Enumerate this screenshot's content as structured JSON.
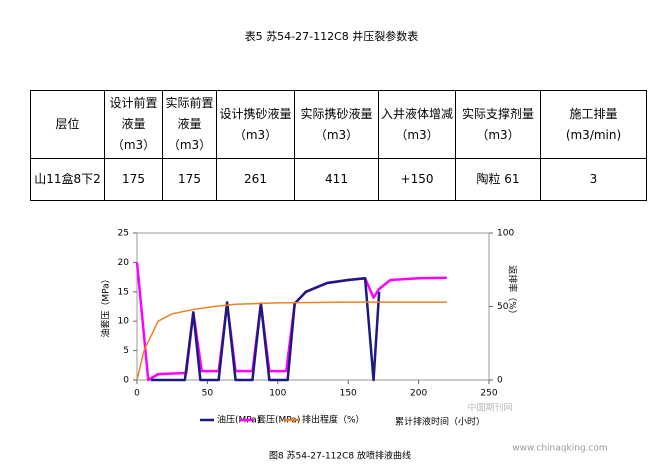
{
  "table": {
    "caption": "表5 苏54-27-112C8 井压裂参数表",
    "header": [
      "层位",
      "设计前置液量（m3）",
      "实际前置液量（m3）",
      "设计携砂液量（m3）",
      "实际携砂液量（m3）",
      "入井液体增减（m3）",
      "实际支撑剂量（m3）",
      "施工排量(m3/min)"
    ],
    "rows": [
      [
        "山11盒8下2",
        "175",
        "175",
        "261",
        "411",
        "+150",
        "陶粒 61",
        "3"
      ]
    ]
  },
  "chart_data": {
    "type": "line",
    "caption": "图8 苏54-27-112C8 放喷排液曲线",
    "x_label": "累计排液时间（小时）",
    "y_label": "油套压（MPa）",
    "y2_label": "返排率（%）",
    "xlim": [
      0,
      250
    ],
    "xticks": [
      0,
      50,
      100,
      150,
      200,
      250
    ],
    "ylim": [
      0,
      25
    ],
    "yticks": [
      0,
      5,
      10,
      15,
      20,
      25
    ],
    "y2lim": [
      0,
      100
    ],
    "y2ticks": [
      0,
      50,
      100
    ],
    "series": [
      {
        "name": "油压(MPa)",
        "color": "#1a1a80",
        "x": [
          10,
          34,
          40,
          45,
          58,
          64,
          70,
          82,
          88,
          94,
          107,
          112,
          120,
          135,
          150,
          162,
          168,
          172
        ],
        "values": [
          0,
          0,
          11.5,
          0,
          0,
          13.2,
          0,
          0,
          13,
          0,
          0,
          13,
          15,
          16.5,
          17,
          17.3,
          0,
          15
        ]
      },
      {
        "name": "套压(MPa)",
        "color": "#ff00ff",
        "x": [
          0,
          8,
          15,
          35,
          40,
          46,
          58,
          64,
          70,
          82,
          88,
          94,
          106,
          112,
          120,
          135,
          150,
          162,
          168,
          172,
          180,
          200,
          220
        ],
        "values": [
          20,
          0,
          1,
          1.2,
          11.5,
          1.5,
          1.5,
          13,
          1.5,
          1.5,
          13,
          1.5,
          1.5,
          13,
          15,
          16.5,
          17,
          17.3,
          14,
          15.5,
          17,
          17.3,
          17.4
        ]
      },
      {
        "name": "排出程度（%）",
        "color": "#f08020",
        "axis": "y2",
        "x": [
          0,
          5,
          15,
          25,
          40,
          55,
          70,
          100,
          150,
          220
        ],
        "values": [
          0,
          20,
          40,
          45,
          48,
          50,
          51.5,
          52.5,
          53,
          53
        ]
      }
    ]
  },
  "watermark": {
    "logo": "中国期刊网",
    "url": "www.chinaqking.com"
  }
}
